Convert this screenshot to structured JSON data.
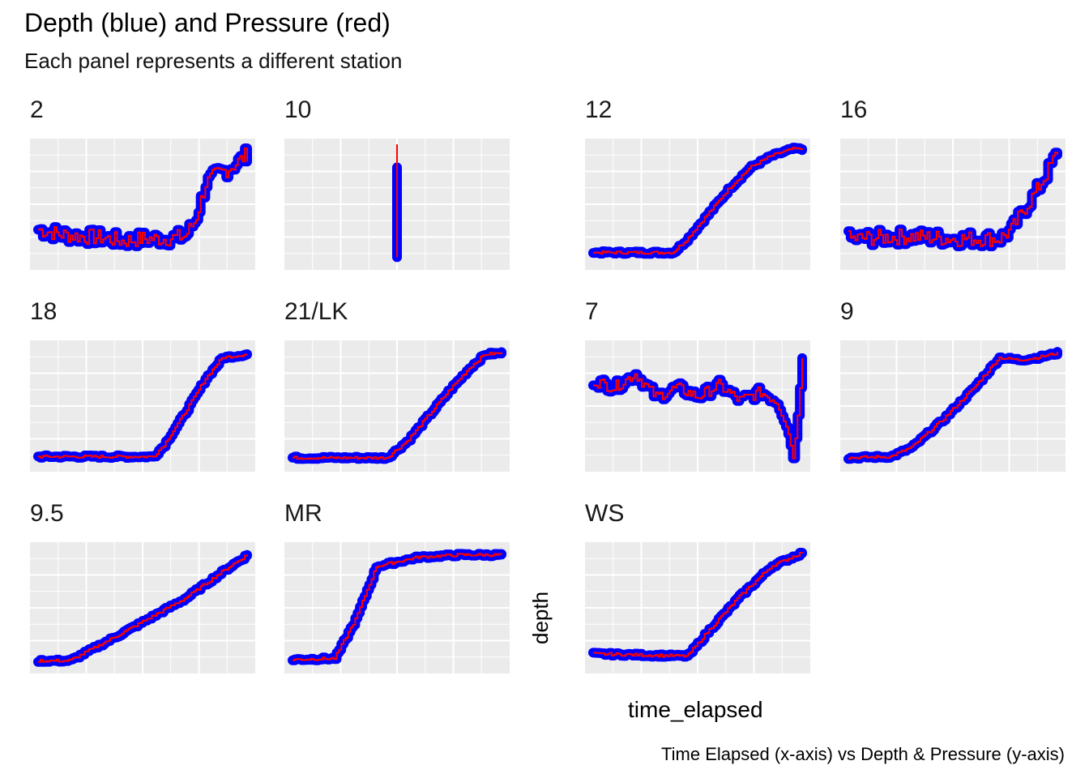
{
  "title": "Depth (blue) and Pressure (red)",
  "subtitle": "Each panel represents a different station",
  "caption": "Time Elapsed (x-axis) vs Depth & Pressure (y-axis)",
  "xlabel": "time_elapsed",
  "ylabel": "depth",
  "colors": {
    "depth": "#0000ff",
    "pressure": "#ff0000",
    "panel_bg": "#ebebeb",
    "grid": "#ffffff"
  },
  "chart_data": {
    "type": "line",
    "facet": "station",
    "series_colors": {
      "depth": "blue",
      "pressure": "red"
    },
    "axes_ticks_shown": false,
    "ranges": {
      "x": [
        0,
        1
      ],
      "y": [
        0,
        1
      ]
    },
    "panels": [
      {
        "station": "2",
        "shape": "noisy-step",
        "points": [
          [
            0,
            0.28
          ],
          [
            0.1,
            0.24
          ],
          [
            0.2,
            0.22
          ],
          [
            0.3,
            0.21
          ],
          [
            0.4,
            0.18
          ],
          [
            0.5,
            0.2
          ],
          [
            0.6,
            0.2
          ],
          [
            0.7,
            0.22
          ],
          [
            0.75,
            0.36
          ],
          [
            0.8,
            0.68
          ],
          [
            0.85,
            0.76
          ],
          [
            0.9,
            0.8
          ],
          [
            0.95,
            0.86
          ],
          [
            1,
            0.94
          ]
        ]
      },
      {
        "station": "10",
        "shape": "vertical",
        "points": [
          [
            0.5,
            0.04
          ],
          [
            0.5,
            0.82
          ]
        ]
      },
      {
        "station": "12",
        "shape": "sigmoid",
        "points": [
          [
            0,
            0.08
          ],
          [
            0.38,
            0.08
          ],
          [
            0.45,
            0.2
          ],
          [
            0.55,
            0.42
          ],
          [
            0.65,
            0.64
          ],
          [
            0.75,
            0.82
          ],
          [
            0.85,
            0.92
          ],
          [
            0.95,
            0.98
          ],
          [
            1,
            0.98
          ]
        ]
      },
      {
        "station": "16",
        "shape": "noisy-step",
        "points": [
          [
            0,
            0.2
          ],
          [
            0.3,
            0.22
          ],
          [
            0.5,
            0.2
          ],
          [
            0.72,
            0.2
          ],
          [
            0.78,
            0.28
          ],
          [
            0.84,
            0.46
          ],
          [
            0.9,
            0.62
          ],
          [
            0.95,
            0.78
          ],
          [
            1,
            0.96
          ]
        ]
      },
      {
        "station": "18",
        "shape": "sigmoid",
        "points": [
          [
            0,
            0.06
          ],
          [
            0.55,
            0.06
          ],
          [
            0.6,
            0.16
          ],
          [
            0.7,
            0.44
          ],
          [
            0.8,
            0.74
          ],
          [
            0.88,
            0.92
          ],
          [
            1,
            0.95
          ]
        ]
      },
      {
        "station": "21/LK",
        "shape": "sigmoid",
        "points": [
          [
            0,
            0.05
          ],
          [
            0.45,
            0.05
          ],
          [
            0.55,
            0.2
          ],
          [
            0.65,
            0.42
          ],
          [
            0.75,
            0.64
          ],
          [
            0.85,
            0.84
          ],
          [
            0.92,
            0.95
          ],
          [
            1,
            0.96
          ]
        ]
      },
      {
        "station": "7",
        "shape": "noisy",
        "points": [
          [
            0,
            0.72
          ],
          [
            0.1,
            0.66
          ],
          [
            0.2,
            0.78
          ],
          [
            0.3,
            0.58
          ],
          [
            0.4,
            0.66
          ],
          [
            0.5,
            0.58
          ],
          [
            0.6,
            0.68
          ],
          [
            0.7,
            0.55
          ],
          [
            0.8,
            0.62
          ],
          [
            0.88,
            0.54
          ],
          [
            0.92,
            0.36
          ],
          [
            0.96,
            0.05
          ],
          [
            1,
            0.95
          ]
        ]
      },
      {
        "station": "9",
        "shape": "sigmoid",
        "points": [
          [
            0,
            0.05
          ],
          [
            0.2,
            0.06
          ],
          [
            0.3,
            0.14
          ],
          [
            0.45,
            0.38
          ],
          [
            0.6,
            0.66
          ],
          [
            0.72,
            0.92
          ],
          [
            0.82,
            0.9
          ],
          [
            0.9,
            0.92
          ],
          [
            1,
            0.96
          ]
        ]
      },
      {
        "station": "9.5",
        "shape": "linear",
        "points": [
          [
            0,
            0.04
          ],
          [
            0.15,
            0.04
          ],
          [
            0.4,
            0.28
          ],
          [
            0.7,
            0.58
          ],
          [
            0.9,
            0.84
          ],
          [
            1,
            0.96
          ]
        ]
      },
      {
        "station": "MR",
        "shape": "sigmoid",
        "points": [
          [
            0,
            0.05
          ],
          [
            0.2,
            0.06
          ],
          [
            0.3,
            0.4
          ],
          [
            0.4,
            0.86
          ],
          [
            0.5,
            0.9
          ],
          [
            0.6,
            0.94
          ],
          [
            0.8,
            0.96
          ],
          [
            1,
            0.96
          ]
        ]
      },
      {
        "station": "WS",
        "shape": "sigmoid",
        "points": [
          [
            0,
            0.1
          ],
          [
            0.45,
            0.08
          ],
          [
            0.55,
            0.3
          ],
          [
            0.7,
            0.6
          ],
          [
            0.85,
            0.86
          ],
          [
            1,
            0.98
          ]
        ]
      }
    ]
  }
}
